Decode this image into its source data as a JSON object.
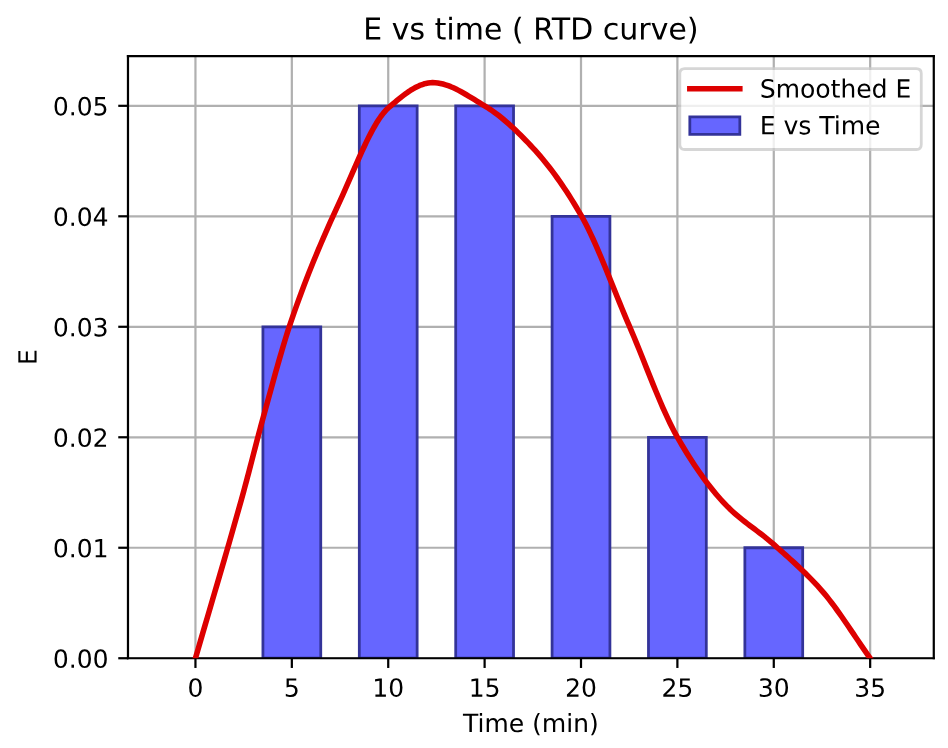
{
  "chart_data": {
    "type": "bar",
    "title": "E vs time ( RTD curve)",
    "xlabel": "Time (min)",
    "ylabel": "E",
    "xlim": [
      -3.5,
      38.3
    ],
    "xticks": [
      0,
      5,
      10,
      15,
      20,
      25,
      30,
      35
    ],
    "ylim": [
      0,
      0.0545
    ],
    "yticks": [
      {
        "value": 0,
        "label": "0.00"
      },
      {
        "value": 0.01,
        "label": "0.01"
      },
      {
        "value": 0.02,
        "label": "0.02"
      },
      {
        "value": 0.03,
        "label": "0.03"
      },
      {
        "value": 0.04,
        "label": "0.04"
      },
      {
        "value": 0.05,
        "label": "0.05"
      }
    ],
    "grid": true,
    "legend": "top right",
    "series": [
      {
        "name": "Smoothed E",
        "type": "line",
        "color": "#dd0000",
        "x": [
          0,
          2.5,
          3.5,
          5,
          7.5,
          10,
          12.3,
          15,
          17.5,
          20,
          22.5,
          25,
          27.5,
          30,
          32.5,
          35
        ],
        "values": [
          0,
          0.0151,
          0.0217,
          0.0307,
          0.0414,
          0.0498,
          0.0521,
          0.05,
          0.0462,
          0.0401,
          0.0301,
          0.02,
          0.0139,
          0.0103,
          0.0061,
          0
        ]
      },
      {
        "name": "E vs Time",
        "color": "#6666ff",
        "x": [
          5,
          10,
          15,
          20,
          25,
          30
        ],
        "values": [
          0.03,
          0.05,
          0.05,
          0.04,
          0.02,
          0.01
        ]
      }
    ]
  }
}
